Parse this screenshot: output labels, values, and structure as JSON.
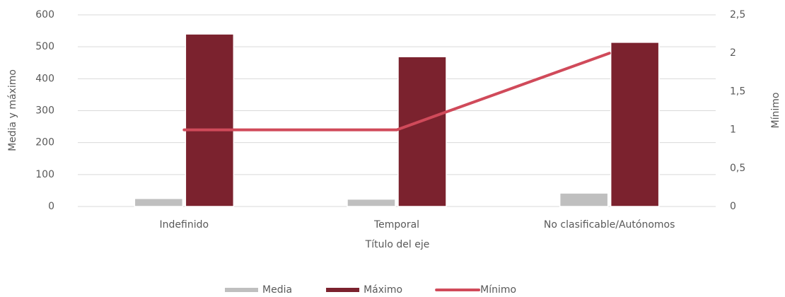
{
  "chart_data": {
    "type": "bar",
    "x_label": "Título del eje",
    "y_label": "Media y máximo",
    "y2_label": "Mínimo",
    "categories": [
      "Indefinido",
      "Temporal",
      "No clasificable/Autónomos"
    ],
    "series": [
      {
        "name": "Media",
        "color": "#bfbfbf",
        "values": [
          25,
          23,
          42
        ]
      },
      {
        "name": "Máximo",
        "color": "#7b222e",
        "values": [
          540,
          469,
          514
        ]
      },
      {
        "name": "Mínimo",
        "color": "#d04a5a",
        "axis": "y2",
        "type": "line",
        "values": [
          1,
          1,
          2
        ]
      }
    ],
    "ylim": [
      0,
      600
    ],
    "yticks": [
      0,
      100,
      200,
      300,
      400,
      500,
      600
    ],
    "y2lim": [
      0,
      2.5
    ],
    "y2ticks": [
      0,
      {
        "value": 0.5,
        "label": "0,5"
      },
      1,
      {
        "value": 1.5,
        "label": "1,5"
      },
      2,
      {
        "value": 2.5,
        "label": "2,5"
      }
    ],
    "grid": true,
    "legend": "bottom"
  }
}
